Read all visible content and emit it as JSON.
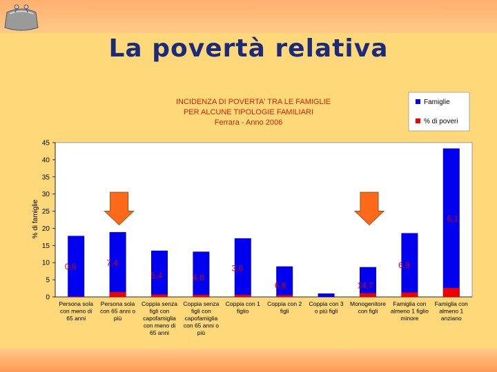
{
  "slide": {
    "title": "La povertà relativa"
  },
  "icons": {
    "logo": "purse-icon"
  },
  "colors": {
    "famiglie": "#0000ee",
    "poveri": "#ee0000",
    "arrow": "#ff6a1a",
    "plot_bg": "#ffffff"
  },
  "chart_data": {
    "type": "bar",
    "title": "INCIDENZA DI POVERTA' TRA LE FAMIGLIE",
    "subtitle": "PER ALCUNE TIPOLOGIE FAMILIARI",
    "subtitle2": "Ferrara - Anno 2006",
    "ylabel": "% di famiglie",
    "xlabel": "",
    "ylim": [
      0,
      45
    ],
    "yticks": [
      0,
      5,
      10,
      15,
      20,
      25,
      30,
      35,
      40,
      45
    ],
    "grid": false,
    "legend_position": "top-right",
    "categories": [
      [
        "Persona sola",
        "con meno di",
        "65 anni"
      ],
      [
        "Persona sola",
        "con 65 anni o",
        "più"
      ],
      [
        "Coppia senza",
        "figli con",
        "capofamiglia",
        "con meno di",
        "65 anni"
      ],
      [
        "Coppia senza",
        "figli con",
        "capofamiglia",
        "con 65 anni o",
        "più"
      ],
      [
        "Coppia con 1",
        "figlio"
      ],
      [
        "Coppia con 2",
        "figli"
      ],
      [
        "Coppia con 3",
        "o più figli"
      ],
      [
        "Monogenitore",
        "con figli"
      ],
      [
        "Famiglia con",
        "almeno 1 figlio",
        "minore"
      ],
      [
        "Famiglia con",
        "almeno 1",
        "anziano"
      ]
    ],
    "series": [
      {
        "name": "Famiglie",
        "values": [
          17.8,
          18.9,
          13.5,
          13.2,
          17.1,
          8.9,
          1.0,
          8.7,
          18.6,
          43.3
        ]
      },
      {
        "name": "% di poveri",
        "values": [
          0.1,
          1.4,
          0.7,
          0.6,
          0.6,
          0.5,
          0.0,
          1.1,
          1.3,
          2.6
        ]
      }
    ],
    "data_labels": [
      "0,6",
      "7,4",
      "5,4",
      "4,8",
      "3,6",
      "6,6",
      "",
      "14,7",
      "6,9",
      "6,1"
    ],
    "arrows_over_categories": [
      1,
      7
    ]
  }
}
